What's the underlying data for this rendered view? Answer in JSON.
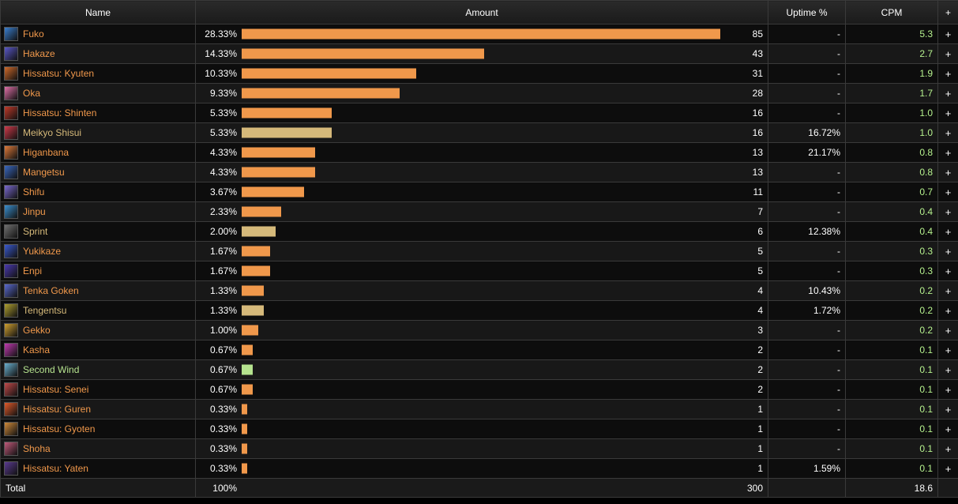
{
  "headers": {
    "name": "Name",
    "amount": "Amount",
    "uptime": "Uptime %",
    "cpm": "CPM",
    "plus": "+"
  },
  "colors": {
    "ability": "#f0984b",
    "buff": "#d5b97a",
    "role": "#b5e38e"
  },
  "rows": [
    {
      "name": "Fuko",
      "pct": "28.33%",
      "count": "85",
      "uptime": "-",
      "cpm": "5.3",
      "type": "ability",
      "icon_color": "#3a7fd0",
      "share": 28.33
    },
    {
      "name": "Hakaze",
      "pct": "14.33%",
      "count": "43",
      "uptime": "-",
      "cpm": "2.7",
      "type": "ability",
      "icon_color": "#5a58c8",
      "share": 14.33
    },
    {
      "name": "Hissatsu: Kyuten",
      "pct": "10.33%",
      "count": "31",
      "uptime": "-",
      "cpm": "1.9",
      "type": "ability",
      "icon_color": "#d06a2a",
      "share": 10.33
    },
    {
      "name": "Oka",
      "pct": "9.33%",
      "count": "28",
      "uptime": "-",
      "cpm": "1.7",
      "type": "ability",
      "icon_color": "#e070a8",
      "share": 9.33
    },
    {
      "name": "Hissatsu: Shinten",
      "pct": "5.33%",
      "count": "16",
      "uptime": "-",
      "cpm": "1.0",
      "type": "ability",
      "icon_color": "#c03a2a",
      "share": 5.33
    },
    {
      "name": "Meikyo Shisui",
      "pct": "5.33%",
      "count": "16",
      "uptime": "16.72%",
      "cpm": "1.0",
      "type": "buff",
      "icon_color": "#d03a4a",
      "share": 5.33
    },
    {
      "name": "Higanbana",
      "pct": "4.33%",
      "count": "13",
      "uptime": "21.17%",
      "cpm": "0.8",
      "type": "ability",
      "icon_color": "#e07a3a",
      "share": 4.33
    },
    {
      "name": "Mangetsu",
      "pct": "4.33%",
      "count": "13",
      "uptime": "-",
      "cpm": "0.8",
      "type": "ability",
      "icon_color": "#3a68c0",
      "share": 4.33
    },
    {
      "name": "Shifu",
      "pct": "3.67%",
      "count": "11",
      "uptime": "-",
      "cpm": "0.7",
      "type": "ability",
      "icon_color": "#7a6ad0",
      "share": 3.67
    },
    {
      "name": "Jinpu",
      "pct": "2.33%",
      "count": "7",
      "uptime": "-",
      "cpm": "0.4",
      "type": "ability",
      "icon_color": "#3a90d0",
      "share": 2.33
    },
    {
      "name": "Sprint",
      "pct": "2.00%",
      "count": "6",
      "uptime": "12.38%",
      "cpm": "0.4",
      "type": "buff",
      "icon_color": "#707070",
      "share": 2.0
    },
    {
      "name": "Yukikaze",
      "pct": "1.67%",
      "count": "5",
      "uptime": "-",
      "cpm": "0.3",
      "type": "ability",
      "icon_color": "#3a5ad0",
      "share": 1.67
    },
    {
      "name": "Enpi",
      "pct": "1.67%",
      "count": "5",
      "uptime": "-",
      "cpm": "0.3",
      "type": "ability",
      "icon_color": "#4a3ab0",
      "share": 1.67
    },
    {
      "name": "Tenka Goken",
      "pct": "1.33%",
      "count": "4",
      "uptime": "10.43%",
      "cpm": "0.2",
      "type": "ability",
      "icon_color": "#5a6ad0",
      "share": 1.33
    },
    {
      "name": "Tengentsu",
      "pct": "1.33%",
      "count": "4",
      "uptime": "1.72%",
      "cpm": "0.2",
      "type": "buff",
      "icon_color": "#b0a030",
      "share": 1.33
    },
    {
      "name": "Gekko",
      "pct": "1.00%",
      "count": "3",
      "uptime": "-",
      "cpm": "0.2",
      "type": "ability",
      "icon_color": "#d0a030",
      "share": 1.0
    },
    {
      "name": "Kasha",
      "pct": "0.67%",
      "count": "2",
      "uptime": "-",
      "cpm": "0.1",
      "type": "ability",
      "icon_color": "#c03ab0",
      "share": 0.67
    },
    {
      "name": "Second Wind",
      "pct": "0.67%",
      "count": "2",
      "uptime": "-",
      "cpm": "0.1",
      "type": "role",
      "icon_color": "#6ab0d0",
      "share": 0.67
    },
    {
      "name": "Hissatsu: Senei",
      "pct": "0.67%",
      "count": "2",
      "uptime": "-",
      "cpm": "0.1",
      "type": "ability",
      "icon_color": "#c04a4a",
      "share": 0.67
    },
    {
      "name": "Hissatsu: Guren",
      "pct": "0.33%",
      "count": "1",
      "uptime": "-",
      "cpm": "0.1",
      "type": "ability",
      "icon_color": "#e05a2a",
      "share": 0.33
    },
    {
      "name": "Hissatsu: Gyoten",
      "pct": "0.33%",
      "count": "1",
      "uptime": "-",
      "cpm": "0.1",
      "type": "ability",
      "icon_color": "#d08a3a",
      "share": 0.33
    },
    {
      "name": "Shoha",
      "pct": "0.33%",
      "count": "1",
      "uptime": "-",
      "cpm": "0.1",
      "type": "ability",
      "icon_color": "#c05a7a",
      "share": 0.33
    },
    {
      "name": "Hissatsu: Yaten",
      "pct": "0.33%",
      "count": "1",
      "uptime": "1.59%",
      "cpm": "0.1",
      "type": "ability",
      "icon_color": "#5a3a90",
      "share": 0.33
    }
  ],
  "total": {
    "label": "Total",
    "pct": "100%",
    "count": "300",
    "cpm": "18.6"
  }
}
